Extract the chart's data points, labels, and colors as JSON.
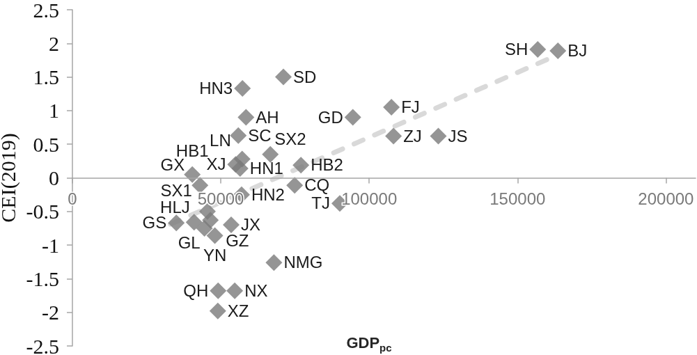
{
  "chart_data": {
    "type": "scatter",
    "xlabel": "GDP$_{pc}$",
    "ylabel": "CEI(2019)",
    "xlim": [
      0,
      210000
    ],
    "xticks": [
      0,
      50000,
      100000,
      150000,
      200000
    ],
    "ylim": [
      -2.5,
      2.5
    ],
    "yticks": [
      -2.5,
      -2,
      -1.5,
      -1,
      -0.5,
      0,
      0.5,
      1,
      1.5,
      2,
      2.5
    ],
    "grid": false,
    "series": [
      {
        "color": "#7a7a7a",
        "marker": "diamond",
        "x": [
          156800,
          163600,
          71100,
          57300,
          58500,
          55900,
          94500,
          107500,
          108200,
          123300,
          66700,
          77000,
          57200,
          55000,
          56500,
          40400,
          43000,
          74900,
          57000,
          90100,
          45500,
          35000,
          41000,
          44500,
          46500,
          53500,
          48000,
          67900,
          49100,
          54700,
          49000
        ],
        "values": [
          1.91,
          1.89,
          1.5,
          1.33,
          0.9,
          0.63,
          0.9,
          1.05,
          0.62,
          0.62,
          0.35,
          0.19,
          0.28,
          0.2,
          0.14,
          0.05,
          -0.11,
          -0.11,
          -0.25,
          -0.38,
          -0.5,
          -0.67,
          -0.66,
          -0.75,
          -0.63,
          -0.7,
          -0.86,
          -1.26,
          -1.68,
          -1.68,
          -1.98
        ]
      },
      {
        "type": "line",
        "color": "#d9d9d9",
        "marker": "none",
        "line_style": "dashed",
        "x": [
          33000,
          163600
        ],
        "values": [
          -0.69,
          1.83
        ]
      }
    ],
    "annotations": [
      {
        "text": "SH",
        "x": 156800,
        "y": 1.91
      },
      {
        "text": "BJ",
        "x": 163600,
        "y": 1.89
      },
      {
        "text": "SD",
        "x": 71100,
        "y": 1.5
      },
      {
        "text": "HN3",
        "x": 57300,
        "y": 1.33
      },
      {
        "text": "AH",
        "x": 58500,
        "y": 0.9
      },
      {
        "text": "SC",
        "x": 55900,
        "y": 0.63
      },
      {
        "text": "GD",
        "x": 94500,
        "y": 0.9
      },
      {
        "text": "FJ",
        "x": 107500,
        "y": 1.05
      },
      {
        "text": "ZJ",
        "x": 108200,
        "y": 0.62
      },
      {
        "text": "JS",
        "x": 123300,
        "y": 0.62
      },
      {
        "text": "SX2",
        "x": 66700,
        "y": 0.35
      },
      {
        "text": "HB2",
        "x": 77000,
        "y": 0.19
      },
      {
        "text": "LN",
        "x": 57200,
        "y": 0.28
      },
      {
        "text": "XJ",
        "x": 55000,
        "y": 0.2
      },
      {
        "text": "HN1",
        "x": 56500,
        "y": 0.14
      },
      {
        "text": "HB1",
        "x": 40400,
        "y": 0.05
      },
      {
        "text": "GX",
        "x": 43000,
        "y": -0.11
      },
      {
        "text": "CQ",
        "x": 74900,
        "y": -0.11
      },
      {
        "text": "HN2",
        "x": 57000,
        "y": -0.25
      },
      {
        "text": "TJ",
        "x": 90100,
        "y": -0.38
      },
      {
        "text": "SX1",
        "x": 45500,
        "y": -0.5
      },
      {
        "text": "GS",
        "x": 35000,
        "y": -0.67
      },
      {
        "text": "HLJ",
        "x": 41000,
        "y": -0.66
      },
      {
        "text": "GL",
        "x": 44500,
        "y": -0.75
      },
      {
        "text": "GZ",
        "x": 46500,
        "y": -0.63
      },
      {
        "text": "JX",
        "x": 53500,
        "y": -0.7
      },
      {
        "text": "YN",
        "x": 48000,
        "y": -0.86
      },
      {
        "text": "NMG",
        "x": 67900,
        "y": -1.26
      },
      {
        "text": "QH",
        "x": 49100,
        "y": -1.68
      },
      {
        "text": "NX",
        "x": 54700,
        "y": -1.68
      },
      {
        "text": "XZ",
        "x": 49000,
        "y": -1.98
      }
    ]
  }
}
